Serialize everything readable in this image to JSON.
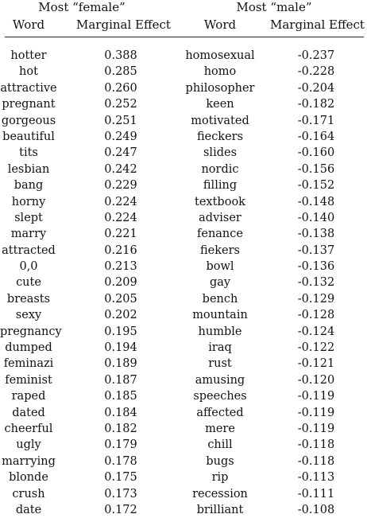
{
  "groups": {
    "female": "Most “female”",
    "male": "Most “male”"
  },
  "columns": {
    "word_f": "Word",
    "effect_f": "Marginal Effect",
    "word_m": "Word",
    "effect_m": "Marginal Effect"
  },
  "rows": [
    {
      "fw": "hotter",
      "fe": "0.388",
      "mw": "homosexual",
      "me": "-0.237"
    },
    {
      "fw": "hot",
      "fe": "0.285",
      "mw": "homo",
      "me": "-0.228"
    },
    {
      "fw": "attractive",
      "fe": "0.260",
      "mw": "philosopher",
      "me": "-0.204"
    },
    {
      "fw": "pregnant",
      "fe": "0.252",
      "mw": "keen",
      "me": "-0.182"
    },
    {
      "fw": "gorgeous",
      "fe": "0.251",
      "mw": "motivated",
      "me": "-0.171"
    },
    {
      "fw": "beautiful",
      "fe": "0.249",
      "mw": "fieckers",
      "me": "-0.164"
    },
    {
      "fw": "tits",
      "fe": "0.247",
      "mw": "slides",
      "me": "-0.160"
    },
    {
      "fw": "lesbian",
      "fe": "0.242",
      "mw": "nordic",
      "me": "-0.156"
    },
    {
      "fw": "bang",
      "fe": "0.229",
      "mw": "filling",
      "me": "-0.152"
    },
    {
      "fw": "horny",
      "fe": "0.224",
      "mw": "textbook",
      "me": "-0.148"
    },
    {
      "fw": "slept",
      "fe": "0.224",
      "mw": "adviser",
      "me": "-0.140"
    },
    {
      "fw": "marry",
      "fe": "0.221",
      "mw": "fenance",
      "me": "-0.138"
    },
    {
      "fw": "attracted",
      "fe": "0.216",
      "mw": "fiekers",
      "me": "-0.137"
    },
    {
      "fw": "0,0",
      "fe": "0.213",
      "mw": "bowl",
      "me": "-0.136"
    },
    {
      "fw": "cute",
      "fe": "0.209",
      "mw": "gay",
      "me": "-0.132"
    },
    {
      "fw": "breasts",
      "fe": "0.205",
      "mw": "bench",
      "me": "-0.129"
    },
    {
      "fw": "sexy",
      "fe": "0.202",
      "mw": "mountain",
      "me": "-0.128"
    },
    {
      "fw": "pregnancy",
      "fe": "0.195",
      "mw": "humble",
      "me": "-0.124"
    },
    {
      "fw": "dumped",
      "fe": "0.194",
      "mw": "iraq",
      "me": "-0.122"
    },
    {
      "fw": "feminazi",
      "fe": "0.189",
      "mw": "rust",
      "me": "-0.121"
    },
    {
      "fw": "feminist",
      "fe": "0.187",
      "mw": "amusing",
      "me": "-0.120"
    },
    {
      "fw": "raped",
      "fe": "0.185",
      "mw": "speeches",
      "me": "-0.119"
    },
    {
      "fw": "dated",
      "fe": "0.184",
      "mw": "affected",
      "me": "-0.119"
    },
    {
      "fw": "cheerful",
      "fe": "0.182",
      "mw": "mere",
      "me": "-0.119"
    },
    {
      "fw": "ugly",
      "fe": "0.179",
      "mw": "chill",
      "me": "-0.118"
    },
    {
      "fw": "marrying",
      "fe": "0.178",
      "mw": "bugs",
      "me": "-0.118"
    },
    {
      "fw": "blonde",
      "fe": "0.175",
      "mw": "rip",
      "me": "-0.113"
    },
    {
      "fw": "crush",
      "fe": "0.173",
      "mw": "recession",
      "me": "-0.111"
    },
    {
      "fw": "date",
      "fe": "0.172",
      "mw": "brilliant",
      "me": "-0.108"
    }
  ]
}
